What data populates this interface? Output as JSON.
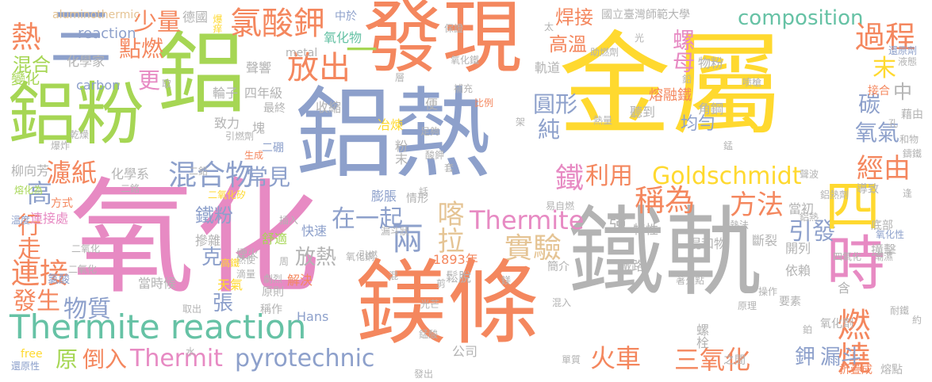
{
  "palette": {
    "orange": "#f4875e",
    "green": "#a6d654",
    "blue": "#8da0cb",
    "pink": "#e78ac3",
    "yellow": "#ffd92f",
    "gray": "#b3b3b3",
    "teal": "#66c2a5",
    "tan": "#e5c494"
  },
  "words": [
    {
      "id": "w1",
      "text": "氧化",
      "color": "pink"
    },
    {
      "id": "w2",
      "text": "鐵軌",
      "color": "gray"
    },
    {
      "id": "w3",
      "text": "金屬",
      "color": "yellow"
    },
    {
      "id": "w4",
      "text": "鋁熱",
      "color": "blue"
    },
    {
      "id": "w5",
      "text": "鎂條",
      "color": "orange"
    },
    {
      "id": "w6",
      "text": "發現",
      "color": "orange"
    },
    {
      "id": "w7",
      "text": "鋁粉",
      "color": "green"
    },
    {
      "id": "w8",
      "text": "鋁",
      "color": "green"
    },
    {
      "id": "w9",
      "text": "時",
      "color": "pink"
    },
    {
      "id": "w10",
      "text": "三",
      "color": "blue"
    },
    {
      "id": "w11",
      "text": "Thermite reaction",
      "color": "teal"
    },
    {
      "id": "w12",
      "text": "氯酸鉀",
      "color": "orange"
    },
    {
      "id": "w13",
      "text": "混合物",
      "color": "blue"
    },
    {
      "id": "w14",
      "text": "Goldschmidt",
      "color": "yellow"
    },
    {
      "id": "w15",
      "text": "稱為",
      "color": "orange"
    },
    {
      "id": "w16",
      "text": "composition",
      "color": "teal"
    },
    {
      "id": "w17",
      "text": "Thermite",
      "color": "pink"
    },
    {
      "id": "w18",
      "text": "Thermit",
      "color": "pink"
    },
    {
      "id": "w19",
      "text": "pyrotechnic",
      "color": "blue"
    },
    {
      "id": "w20",
      "text": "方法",
      "color": "orange"
    },
    {
      "id": "w21",
      "text": "實驗",
      "color": "tan"
    },
    {
      "id": "w22",
      "text": "放出",
      "color": "orange"
    },
    {
      "id": "w23",
      "text": "在一起",
      "color": "blue"
    },
    {
      "id": "w24",
      "text": "一",
      "color": "green"
    },
    {
      "id": "w25",
      "text": "兩",
      "color": "blue"
    },
    {
      "id": "w26",
      "text": "喀拉",
      "color": "tan"
    },
    {
      "id": "w27",
      "text": "燃燒",
      "color": "orange"
    },
    {
      "id": "w28",
      "text": "三氧化",
      "color": "orange"
    },
    {
      "id": "w29",
      "text": "連接",
      "color": "orange"
    },
    {
      "id": "w30",
      "text": "物質",
      "color": "blue"
    },
    {
      "id": "w31",
      "text": "倒入",
      "color": "orange"
    },
    {
      "id": "w32",
      "text": "火車",
      "color": "orange"
    },
    {
      "id": "w33",
      "text": "過程",
      "color": "orange"
    },
    {
      "id": "w34",
      "text": "經由",
      "color": "orange"
    },
    {
      "id": "w35",
      "text": "引發",
      "color": "blue"
    },
    {
      "id": "w36",
      "text": "利用",
      "color": "orange"
    },
    {
      "id": "w37",
      "text": "四",
      "color": "yellow"
    },
    {
      "id": "w38",
      "text": "鐵",
      "color": "pink"
    },
    {
      "id": "w39",
      "text": "熱",
      "color": "orange"
    },
    {
      "id": "w40",
      "text": "高",
      "color": "blue"
    },
    {
      "id": "w41",
      "text": "焊接",
      "color": "orange"
    },
    {
      "id": "w42",
      "text": "高溫",
      "color": "orange"
    },
    {
      "id": "w43",
      "text": "少量",
      "color": "orange"
    },
    {
      "id": "w44",
      "text": "點燃",
      "color": "orange"
    },
    {
      "id": "w45",
      "text": "更",
      "color": "pink"
    },
    {
      "id": "w46",
      "text": "濾紙",
      "color": "orange"
    },
    {
      "id": "w47",
      "text": "常見",
      "color": "blue"
    },
    {
      "id": "w48",
      "text": "螺母",
      "color": "pink"
    },
    {
      "id": "w49",
      "text": "末",
      "color": "yellow"
    },
    {
      "id": "w50",
      "text": "碳",
      "color": "blue"
    },
    {
      "id": "w51",
      "text": "氧氣",
      "color": "blue"
    },
    {
      "id": "w52",
      "text": "行走",
      "color": "orange"
    },
    {
      "id": "w53",
      "text": "發生",
      "color": "orange"
    },
    {
      "id": "w54",
      "text": "原",
      "color": "green"
    },
    {
      "id": "w55",
      "text": "混合",
      "color": "green"
    },
    {
      "id": "w56",
      "text": "變化",
      "color": "green"
    },
    {
      "id": "w57",
      "text": "鐵粉",
      "color": "blue"
    },
    {
      "id": "w58",
      "text": "均勻",
      "color": "blue"
    },
    {
      "id": "w59",
      "text": "圓形",
      "color": "blue"
    },
    {
      "id": "w60",
      "text": "純",
      "color": "blue"
    },
    {
      "id": "w61",
      "text": "放熱",
      "color": "gray"
    },
    {
      "id": "w62",
      "text": "張",
      "color": "blue"
    },
    {
      "id": "w63",
      "text": "克",
      "color": "blue"
    },
    {
      "id": "w64",
      "text": "漏斗",
      "color": "blue"
    },
    {
      "id": "w65",
      "text": "鉀",
      "color": "blue"
    },
    {
      "id": "w66",
      "text": "強",
      "color": "gray"
    },
    {
      "id": "w67",
      "text": "中",
      "color": "gray"
    },
    {
      "id": "w68",
      "text": "aluminothermic",
      "color": "tan"
    },
    {
      "id": "w69",
      "text": "reaction",
      "color": "blue"
    },
    {
      "id": "w70",
      "text": "化學家",
      "color": "gray"
    },
    {
      "id": "w71",
      "text": "carbon",
      "color": "blue"
    },
    {
      "id": "w72",
      "text": "德國",
      "color": "gray"
    },
    {
      "id": "w73",
      "text": "爆痒",
      "color": "yellow"
    },
    {
      "id": "w74",
      "text": "氧化物",
      "color": "teal"
    },
    {
      "id": "w75",
      "text": "中於",
      "color": "blue"
    },
    {
      "id": "w76",
      "text": "國立臺灣師範大學",
      "color": "gray"
    },
    {
      "id": "w77",
      "text": "聲響",
      "color": "gray"
    },
    {
      "id": "w78",
      "text": "metal",
      "color": "gray"
    },
    {
      "id": "w79",
      "text": "輪子",
      "color": "gray"
    },
    {
      "id": "w80",
      "text": "四年級",
      "color": "gray"
    },
    {
      "id": "w81",
      "text": "最終",
      "color": "gray"
    },
    {
      "id": "w82",
      "text": "收縮",
      "color": "gray"
    },
    {
      "id": "w83",
      "text": "致力",
      "color": "gray"
    },
    {
      "id": "w84",
      "text": "冶煉",
      "color": "yellow"
    },
    {
      "id": "w85",
      "text": "粉末",
      "color": "gray"
    },
    {
      "id": "w86",
      "text": "膨脹",
      "color": "blue"
    },
    {
      "id": "w87",
      "text": "軌道",
      "color": "gray"
    },
    {
      "id": "w88",
      "text": "物粉",
      "color": "gray"
    },
    {
      "id": "w89",
      "text": "角鋼",
      "color": "gray"
    },
    {
      "id": "w90",
      "text": "聽到",
      "color": "gray"
    },
    {
      "id": "w91",
      "text": "熔融鐵",
      "color": "orange"
    },
    {
      "id": "w92",
      "text": "還原劑",
      "color": "blue"
    },
    {
      "id": "w93",
      "text": "接合",
      "color": "orange"
    },
    {
      "id": "w94",
      "text": "藉由",
      "color": "gray"
    },
    {
      "id": "w95",
      "text": "柳向芳",
      "color": "gray"
    },
    {
      "id": "w96",
      "text": "化學系",
      "color": "gray"
    },
    {
      "id": "w97",
      "text": "二硼",
      "color": "blue"
    },
    {
      "id": "w98",
      "text": "塊",
      "color": "gray"
    },
    {
      "id": "w99",
      "text": "特性",
      "color": "gray"
    },
    {
      "id": "w100",
      "text": "當初",
      "color": "gray"
    },
    {
      "id": "w101",
      "text": "導致",
      "color": "gray"
    },
    {
      "id": "w102",
      "text": "方式",
      "color": "orange"
    },
    {
      "id": "w103",
      "text": "連接處",
      "color": "pink"
    },
    {
      "id": "w104",
      "text": "快速",
      "color": "blue"
    },
    {
      "id": "w105",
      "text": "情形",
      "color": "gray"
    },
    {
      "id": "w106",
      "text": "鐵路",
      "color": "gray"
    },
    {
      "id": "w107",
      "text": "混和物",
      "color": "gray"
    },
    {
      "id": "w108",
      "text": "斷裂",
      "color": "gray"
    },
    {
      "id": "w109",
      "text": "摻雜",
      "color": "gray"
    },
    {
      "id": "w110",
      "text": "舒適",
      "color": "green"
    },
    {
      "id": "w111",
      "text": "天氣",
      "color": "yellow"
    },
    {
      "id": "w112",
      "text": "開列",
      "color": "gray"
    },
    {
      "id": "w113",
      "text": "撞擊",
      "color": "gray"
    },
    {
      "id": "w114",
      "text": "鬆脫",
      "color": "gray"
    },
    {
      "id": "w115",
      "text": "解決",
      "color": "orange"
    },
    {
      "id": "w116",
      "text": "依賴",
      "color": "gray"
    },
    {
      "id": "w117",
      "text": "簡介",
      "color": "gray"
    },
    {
      "id": "w118",
      "text": "原則",
      "color": "gray"
    },
    {
      "id": "w119",
      "text": "稱作",
      "color": "gray"
    },
    {
      "id": "w120",
      "text": "1893年",
      "color": "orange"
    },
    {
      "id": "w121",
      "text": "當時候",
      "color": "gray"
    },
    {
      "id": "w122",
      "text": "Hans",
      "color": "blue"
    },
    {
      "id": "w123",
      "text": "free",
      "color": "yellow"
    },
    {
      "id": "w124",
      "text": "公司",
      "color": "gray"
    },
    {
      "id": "w125",
      "text": "螺栓",
      "color": "gray"
    },
    {
      "id": "w126",
      "text": "之間",
      "color": "gray"
    },
    {
      "id": "w127",
      "text": "還原性",
      "color": "blue"
    },
    {
      "id": "w128",
      "text": "二氧化矽",
      "color": "yellow"
    },
    {
      "id": "w129",
      "text": "氧化銅",
      "color": "gray"
    },
    {
      "id": "w130",
      "text": "氧化劑",
      "color": "gray"
    },
    {
      "id": "w131",
      "text": "氧化性",
      "color": "blue"
    },
    {
      "id": "w132",
      "text": "折疊成",
      "color": "orange"
    },
    {
      "id": "w133",
      "text": "熔點",
      "color": "gray"
    },
    {
      "id": "w134",
      "text": "單質",
      "color": "gray"
    },
    {
      "id": "w135",
      "text": "要素",
      "color": "gray"
    },
    {
      "id": "w136",
      "text": "底部",
      "color": "gray"
    },
    {
      "id": "w137",
      "text": "氯酸",
      "color": "blue"
    },
    {
      "id": "w138",
      "text": "熔化為",
      "color": "green"
    },
    {
      "id": "w139",
      "text": "溫度",
      "color": "blue"
    },
    {
      "id": "w140",
      "text": "爆炸",
      "color": "gray"
    },
    {
      "id": "w141",
      "text": "生成",
      "color": "orange"
    },
    {
      "id": "w142",
      "text": "引燃劑",
      "color": "gray"
    },
    {
      "id": "w143",
      "text": "助燃劑",
      "color": "gray"
    },
    {
      "id": "w144",
      "text": "補充",
      "color": "gray"
    },
    {
      "id": "w145",
      "text": "比例",
      "color": "orange"
    },
    {
      "id": "w146",
      "text": "保證",
      "color": "gray"
    },
    {
      "id": "w147",
      "text": "液態",
      "color": "gray"
    },
    {
      "id": "w148",
      "text": "喷槍",
      "color": "gray"
    },
    {
      "id": "w149",
      "text": "熱量",
      "color": "gray"
    },
    {
      "id": "w150",
      "text": "光芒",
      "color": "gray"
    },
    {
      "id": "w151",
      "text": "鋁熱劑",
      "color": "gray"
    },
    {
      "id": "w152",
      "text": "聲波",
      "color": "gray"
    },
    {
      "id": "w153",
      "text": "四氧化",
      "color": "gray"
    },
    {
      "id": "w154",
      "text": "著火點",
      "color": "gray"
    },
    {
      "id": "w155",
      "text": "漏斗狀",
      "color": "gray"
    },
    {
      "id": "w156",
      "text": "取出",
      "color": "gray"
    },
    {
      "id": "w157",
      "text": "發出",
      "color": "gray"
    },
    {
      "id": "w158",
      "text": "錳酸",
      "color": "gray"
    },
    {
      "id": "w159",
      "text": "乾燥",
      "color": "gray"
    },
    {
      "id": "w160",
      "text": "二鉻",
      "color": "gray"
    },
    {
      "id": "w161",
      "text": "熱使",
      "color": "gray"
    },
    {
      "id": "w162",
      "text": "劇烈",
      "color": "gray"
    },
    {
      "id": "w163",
      "text": "滴量",
      "color": "gray"
    },
    {
      "id": "w164",
      "text": "煙火",
      "color": "gray"
    },
    {
      "id": "w165",
      "text": "高鐵",
      "color": "yellow"
    },
    {
      "id": "w166",
      "text": "插入",
      "color": "gray"
    },
    {
      "id": "w167",
      "text": "熱法",
      "color": "gray"
    },
    {
      "id": "w168",
      "text": "易自燃",
      "color": "gray"
    },
    {
      "id": "w169",
      "text": "引燃",
      "color": "gray"
    },
    {
      "id": "w170",
      "text": "潮濕",
      "color": "gray"
    },
    {
      "id": "w171",
      "text": "原理",
      "color": "gray"
    },
    {
      "id": "w172",
      "text": "操作",
      "color": "gray"
    },
    {
      "id": "w173",
      "text": "約",
      "color": "gray"
    },
    {
      "id": "w174",
      "text": "混入",
      "color": "gray"
    },
    {
      "id": "w175",
      "text": "酸鉀",
      "color": "gray"
    },
    {
      "id": "w176",
      "text": "足夠",
      "color": "gray"
    },
    {
      "id": "w177",
      "text": "二氧化",
      "color": "gray"
    },
    {
      "id": "w178",
      "text": "和物",
      "color": "gray"
    },
    {
      "id": "w179",
      "text": "鑄鐵",
      "color": "gray"
    },
    {
      "id": "w180",
      "text": "耐鐵",
      "color": "gray"
    },
    {
      "id": "w181",
      "text": "鉛",
      "color": "gray"
    },
    {
      "id": "w182",
      "text": "剪",
      "color": "gray"
    },
    {
      "id": "w183",
      "text": "便",
      "color": "gray"
    },
    {
      "id": "w184",
      "text": "層",
      "color": "gray"
    },
    {
      "id": "w185",
      "text": "架",
      "color": "gray"
    },
    {
      "id": "w186",
      "text": "取",
      "color": "gray"
    },
    {
      "id": "w187",
      "text": "套",
      "color": "gray"
    },
    {
      "id": "w188",
      "text": "話",
      "color": "gray"
    },
    {
      "id": "w189",
      "text": "周",
      "color": "gray"
    },
    {
      "id": "w190",
      "text": "混",
      "color": "gray"
    },
    {
      "id": "w191",
      "text": "水",
      "color": "gray"
    },
    {
      "id": "w192",
      "text": "太",
      "color": "gray"
    },
    {
      "id": "w193",
      "text": "光",
      "color": "gray"
    },
    {
      "id": "w194",
      "text": "錳",
      "color": "gray"
    },
    {
      "id": "w195",
      "text": "孔",
      "color": "gray"
    },
    {
      "id": "w196",
      "text": "逢",
      "color": "gray"
    },
    {
      "id": "w197",
      "text": "鉑",
      "color": "gray"
    },
    {
      "id": "w198",
      "text": "鎂",
      "color": "gray"
    },
    {
      "id": "w199",
      "text": "含",
      "color": "gray"
    },
    {
      "id": "w200",
      "text": "氧化鐵",
      "color": "gray"
    },
    {
      "id": "w201",
      "text": "二氧化",
      "color": "gray"
    },
    {
      "id": "w202",
      "text": "二鉛",
      "color": "gray"
    },
    {
      "id": "w203",
      "text": "鋁熱",
      "color": "gray"
    }
  ]
}
